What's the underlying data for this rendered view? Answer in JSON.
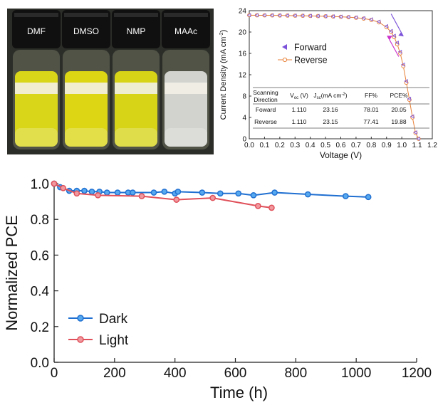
{
  "photo": {
    "labels": [
      "DMF",
      "DMSO",
      "NMP",
      "MAAc"
    ],
    "liquid_colors": [
      "#d9d61a",
      "#dcd615",
      "#d7d417",
      "#d2d3cf"
    ]
  },
  "chart_data": [
    {
      "type": "scatter",
      "title": "",
      "xlabel": "Voltage (V)",
      "ylabel": "Current Density (mA cm⁻²)",
      "ylabel_parts": [
        "Current Density (mA cm",
        "-2",
        ")"
      ],
      "xlim": [
        0.0,
        1.2
      ],
      "ylim": [
        0,
        24
      ],
      "xticks": [
        "0.0",
        "0.1",
        "0.2",
        "0.3",
        "0.4",
        "0.5",
        "0.6",
        "0.7",
        "0.8",
        "0.9",
        "1.0",
        "1.1",
        "1.2"
      ],
      "yticks": [
        "0",
        "4",
        "8",
        "12",
        "16",
        "20",
        "24"
      ],
      "legend_position": "center-right",
      "series": [
        {
          "name": "Forward",
          "color": "#7b52d9",
          "marker": "triangle-left",
          "x": [
            0.0,
            0.05,
            0.1,
            0.15,
            0.2,
            0.25,
            0.3,
            0.35,
            0.4,
            0.45,
            0.5,
            0.55,
            0.6,
            0.65,
            0.7,
            0.75,
            0.8,
            0.85,
            0.9,
            0.93,
            0.95,
            0.97,
            0.99,
            1.01,
            1.03,
            1.05,
            1.07,
            1.09,
            1.11
          ],
          "y": [
            23.16,
            23.15,
            23.14,
            23.13,
            23.12,
            23.1,
            23.08,
            23.06,
            23.03,
            23.0,
            22.97,
            22.93,
            22.88,
            22.82,
            22.73,
            22.6,
            22.38,
            21.95,
            21.1,
            20.2,
            19.3,
            18.0,
            16.3,
            13.9,
            10.8,
            7.5,
            4.2,
            1.2,
            0.0
          ]
        },
        {
          "name": "Reverse",
          "color": "#e8823a",
          "marker": "circle",
          "x": [
            0.0,
            0.05,
            0.1,
            0.15,
            0.2,
            0.25,
            0.3,
            0.35,
            0.4,
            0.45,
            0.5,
            0.55,
            0.6,
            0.65,
            0.7,
            0.75,
            0.8,
            0.85,
            0.9,
            0.93,
            0.95,
            0.97,
            0.99,
            1.01,
            1.03,
            1.05,
            1.07,
            1.09,
            1.11
          ],
          "y": [
            23.15,
            23.14,
            23.13,
            23.12,
            23.11,
            23.09,
            23.07,
            23.05,
            23.02,
            22.99,
            22.95,
            22.9,
            22.85,
            22.78,
            22.68,
            22.52,
            22.28,
            21.82,
            20.9,
            20.0,
            19.05,
            17.7,
            16.0,
            13.6,
            10.5,
            7.3,
            4.0,
            1.1,
            0.0
          ]
        }
      ],
      "table": {
        "headers": [
          "Scanning Direction",
          "V",
          "oc",
          " (V)",
          "J",
          "sc",
          "(mA cm",
          "-2",
          ")",
          "FF%",
          "PCE%"
        ],
        "header_cells": {
          "c1": "Scanning",
          "c1b": "Direction",
          "voc": [
            "V",
            "oc",
            " (V)"
          ],
          "jsc": [
            "J",
            "sc",
            "(mA cm",
            "-2",
            ")"
          ],
          "ff": "FF%",
          "pce": "PCE%"
        },
        "rows": [
          [
            "Foward",
            "1.110",
            "23.16",
            "78.01",
            "20.05"
          ],
          [
            "Reverse",
            "1.110",
            "23.15",
            "77.41",
            "19.88"
          ]
        ]
      }
    },
    {
      "type": "line",
      "title": "",
      "xlabel": "Time (h)",
      "ylabel": "Normalized PCE",
      "xlim": [
        0,
        1200
      ],
      "ylim": [
        0.0,
        1.0
      ],
      "xticks": [
        "0",
        "200",
        "400",
        "600",
        "800",
        "1000",
        "1200"
      ],
      "yticks": [
        "0.0",
        "0.2",
        "0.4",
        "0.6",
        "0.8",
        "1.0"
      ],
      "legend_position": "bottom-left",
      "series": [
        {
          "name": "Dark",
          "color": "#1f6fd1",
          "fill": "#56a8ef",
          "x": [
            0,
            20,
            50,
            75,
            100,
            125,
            150,
            175,
            210,
            245,
            260,
            330,
            365,
            400,
            410,
            490,
            550,
            610,
            660,
            730,
            840,
            965,
            1040
          ],
          "y": [
            1.0,
            0.98,
            0.96,
            0.96,
            0.96,
            0.955,
            0.955,
            0.95,
            0.95,
            0.95,
            0.95,
            0.95,
            0.955,
            0.945,
            0.955,
            0.95,
            0.945,
            0.945,
            0.935,
            0.95,
            0.94,
            0.93,
            0.925
          ]
        },
        {
          "name": "Light",
          "color": "#e0505a",
          "fill": "#f09aa0",
          "x": [
            0,
            30,
            75,
            145,
            290,
            405,
            525,
            675,
            720
          ],
          "y": [
            1.0,
            0.975,
            0.945,
            0.935,
            0.93,
            0.91,
            0.92,
            0.875,
            0.865
          ]
        }
      ]
    }
  ]
}
